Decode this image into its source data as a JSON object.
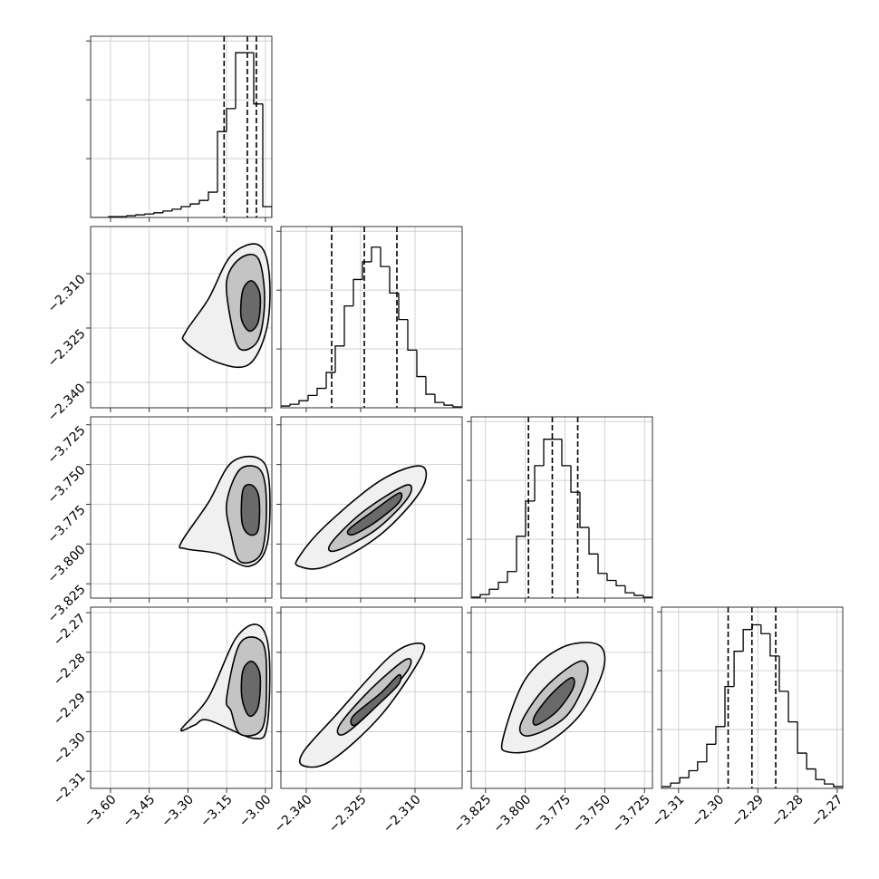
{
  "chart_data": {
    "type": "corner",
    "grid": true,
    "line_color": "#000000",
    "params": [
      {
        "xlim": [
          -3.677,
          -2.975
        ],
        "xticks": [
          {
            "value": -3.6,
            "label": "−3.60"
          },
          {
            "value": -3.45,
            "label": "−3.45"
          },
          {
            "value": -3.3,
            "label": "−3.30"
          },
          {
            "value": -3.15,
            "label": "−3.15"
          },
          {
            "value": -3.0,
            "label": "−3.00"
          }
        ],
        "hist": {
          "bins": [
            -3.677,
            -3.6419,
            -3.6068,
            -3.5717,
            -3.5366,
            -3.5015,
            -3.4664,
            -3.4313,
            -3.3962,
            -3.3611,
            -3.326,
            -3.2909,
            -3.2558,
            -3.2207,
            -3.1856,
            -3.1505,
            -3.1154,
            -3.0803,
            -3.0452,
            -3.0101,
            -2.975
          ],
          "counts": [
            0,
            0,
            15,
            15,
            30,
            45,
            60,
            80,
            110,
            140,
            185,
            230,
            290,
            430,
            1460,
            1850,
            2800,
            2800,
            1930,
            185
          ],
          "ylim": [
            0,
            3080
          ],
          "yticks": [
            1000,
            2000,
            3000
          ]
        },
        "quantiles": [
          -3.16,
          -3.07,
          -3.035
        ]
      },
      {
        "xlim": [
          -2.347,
          -2.297
        ],
        "xticks": [
          {
            "value": -2.34,
            "label": "−2.340"
          },
          {
            "value": -2.325,
            "label": "−2.325"
          },
          {
            "value": -2.31,
            "label": "−2.310"
          }
        ],
        "hist": {
          "bins": [
            -2.347,
            -2.3445,
            -2.342,
            -2.3395,
            -2.337,
            -2.3345,
            -2.332,
            -2.3295,
            -2.327,
            -2.3245,
            -2.322,
            -2.3195,
            -2.317,
            -2.3145,
            -2.312,
            -2.3095,
            -2.307,
            -2.3045,
            -2.302,
            -2.2995,
            -2.297
          ],
          "counts": [
            30,
            60,
            120,
            210,
            330,
            600,
            1050,
            1730,
            2180,
            2480,
            2730,
            2400,
            1950,
            1500,
            980,
            530,
            230,
            90,
            45,
            15
          ],
          "ylim": [
            0,
            3080
          ],
          "yticks": [
            1000,
            2000,
            3000
          ]
        },
        "quantiles": [
          -2.333,
          -2.324,
          -2.315
        ]
      },
      {
        "xlim": [
          -3.834,
          -3.72
        ],
        "xticks": [
          {
            "value": -3.825,
            "label": "−3.825"
          },
          {
            "value": -3.8,
            "label": "−3.800"
          },
          {
            "value": -3.775,
            "label": "−3.775"
          },
          {
            "value": -3.75,
            "label": "−3.750"
          },
          {
            "value": -3.725,
            "label": "−3.725"
          }
        ],
        "hist": {
          "bins": [
            -3.834,
            -3.8283,
            -3.8226,
            -3.8169,
            -3.8112,
            -3.8055,
            -3.7998,
            -3.7941,
            -3.7884,
            -3.7827,
            -3.777,
            -3.7713,
            -3.7656,
            -3.7599,
            -3.7542,
            -3.7485,
            -3.7428,
            -3.7371,
            -3.7314,
            -3.7257,
            -3.72
          ],
          "counts": [
            15,
            60,
            150,
            270,
            450,
            1050,
            1650,
            2250,
            2700,
            2700,
            2250,
            1800,
            1200,
            750,
            420,
            300,
            210,
            90,
            45,
            15
          ],
          "ylim": [
            0,
            3080
          ],
          "yticks": [
            1000,
            2000,
            3000
          ]
        },
        "quantiles": [
          -3.798,
          -3.783,
          -3.767
        ]
      },
      {
        "xlim": [
          -2.3143,
          -2.2686
        ],
        "xticks": [
          {
            "value": -2.31,
            "label": "−2.31"
          },
          {
            "value": -2.3,
            "label": "−2.30"
          },
          {
            "value": -2.29,
            "label": "−2.29"
          },
          {
            "value": -2.28,
            "label": "−2.28"
          },
          {
            "value": -2.27,
            "label": "−2.27"
          }
        ],
        "hist": {
          "bins": [
            -2.3143,
            -2.312,
            -2.3097,
            -2.3074,
            -2.3052,
            -2.3029,
            -2.3006,
            -2.2983,
            -2.296,
            -2.2937,
            -2.2914,
            -2.2892,
            -2.2869,
            -2.2846,
            -2.2823,
            -2.28,
            -2.2777,
            -2.2754,
            -2.2732,
            -2.2709,
            -2.2686
          ],
          "counts": [
            30,
            90,
            180,
            300,
            450,
            750,
            1050,
            1730,
            2330,
            2700,
            2780,
            2630,
            2250,
            1650,
            1130,
            600,
            330,
            150,
            75,
            30
          ],
          "ylim": [
            0,
            3080
          ],
          "yticks": [
            1000,
            2000,
            3000
          ]
        },
        "quantiles": [
          -2.2975,
          -2.2915,
          -2.2855
        ]
      }
    ],
    "pairs": [
      {
        "contours": [
          {
            "x": [
              -3.308,
              -3.221,
              -3.133,
              -3.028,
              -2.986,
              -2.993,
              -3.063,
              -3.186,
              -3.308
            ],
            "y": [
              -2.326,
              -2.317,
              -2.305,
              -2.302,
              -2.3095,
              -2.3245,
              -2.335,
              -2.3345,
              -2.329
            ]
          },
          {
            "x": [
              -3.15,
              -3.098,
              -3.028,
              -3.003,
              -3.028,
              -3.098,
              -3.133
            ],
            "y": [
              -2.312,
              -2.3058,
              -2.3058,
              -2.317,
              -2.3283,
              -2.3308,
              -2.3233
            ]
          },
          {
            "x": [
              -3.087,
              -3.052,
              -3.021,
              -3.028,
              -3.063,
              -3.094
            ],
            "y": [
              -2.3145,
              -2.312,
              -2.3158,
              -2.3233,
              -2.3258,
              -2.322
            ]
          }
        ]
      },
      {
        "contours": [
          {
            "x": [
              -3.326,
              -3.221,
              -3.133,
              -3.028,
              -2.986,
              -2.993,
              -3.063,
              -3.186,
              -3.308
            ],
            "y": [
              -3.799,
              -3.774,
              -3.749,
              -3.746,
              -3.76,
              -3.8,
              -3.814,
              -3.806,
              -3.803
            ]
          },
          {
            "x": [
              -3.15,
              -3.098,
              -3.017,
              -2.996,
              -3.017,
              -3.098,
              -3.133
            ],
            "y": [
              -3.774,
              -3.753,
              -3.754,
              -3.777,
              -3.806,
              -3.811,
              -3.794
            ]
          },
          {
            "x": [
              -3.087,
              -3.052,
              -3.025,
              -3.028,
              -3.063,
              -3.091
            ],
            "y": [
              -3.766,
              -3.763,
              -3.771,
              -3.791,
              -3.794,
              -3.786
            ]
          }
        ]
      },
      {
        "contours": [
          {
            "x": [
              -2.342,
              -2.3345,
              -2.3195,
              -2.3083,
              -2.3083,
              -2.3195,
              -2.3345,
              -2.342
            ],
            "y": [
              -3.808,
              -3.788,
              -3.76,
              -3.751,
              -3.766,
              -3.794,
              -3.814,
              -3.814
            ]
          },
          {
            "x": [
              -2.3333,
              -2.3245,
              -2.3125,
              -2.312,
              -2.3208,
              -2.3315
            ],
            "y": [
              -3.8,
              -3.78,
              -3.763,
              -3.771,
              -3.791,
              -3.804
            ]
          },
          {
            "x": [
              -2.3283,
              -2.322,
              -2.3145,
              -2.3145,
              -2.3208,
              -2.327
            ],
            "y": [
              -3.791,
              -3.78,
              -3.768,
              -3.774,
              -3.786,
              -3.794
            ]
          }
        ]
      },
      {
        "contours": [
          {
            "x": [
              -3.326,
              -3.221,
              -3.115,
              -3.028,
              -2.986,
              -2.993,
              -3.045,
              -3.221,
              -3.273
            ],
            "y": [
              -2.2994,
              -2.2914,
              -2.2765,
              -2.2731,
              -2.28,
              -2.2983,
              -2.3017,
              -2.2971,
              -2.2983
            ]
          },
          {
            "x": [
              -3.15,
              -3.098,
              -3.01,
              -2.996,
              -3.014,
              -3.098,
              -3.133
            ],
            "y": [
              -2.2914,
              -2.2777,
              -2.2777,
              -2.2891,
              -2.2994,
              -2.3006,
              -2.2948
            ]
          },
          {
            "x": [
              -3.087,
              -3.052,
              -3.021,
              -3.028,
              -3.063,
              -3.091
            ],
            "y": [
              -2.2846,
              -2.2823,
              -2.2857,
              -2.2937,
              -2.296,
              -2.2914
            ]
          }
        ]
      },
      {
        "contours": [
          {
            "x": [
              -2.3408,
              -2.332,
              -2.317,
              -2.309,
              -2.3083,
              -2.3195,
              -2.3333,
              -2.3408
            ],
            "y": [
              -2.3051,
              -2.296,
              -2.2811,
              -2.2777,
              -2.2811,
              -2.296,
              -2.3074,
              -2.3086
            ]
          },
          {
            "x": [
              -2.3308,
              -2.322,
              -2.3125,
              -2.312,
              -2.3208,
              -2.3295
            ],
            "y": [
              -2.2983,
              -2.2891,
              -2.2818,
              -2.2845,
              -2.2937,
              -2.3006
            ]
          },
          {
            "x": [
              -2.327,
              -2.3195,
              -2.3145,
              -2.3145,
              -2.3195,
              -2.3265
            ],
            "y": [
              -2.296,
              -2.2903,
              -2.2857,
              -2.288,
              -2.2926,
              -2.2983
            ]
          }
        ]
      },
      {
        "contours": [
          {
            "x": [
              -3.814,
              -3.8,
              -3.777,
              -3.754,
              -3.751,
              -3.766,
              -3.791,
              -3.811
            ],
            "y": [
              -2.3017,
              -2.2868,
              -2.2788,
              -2.2781,
              -2.2845,
              -2.296,
              -2.304,
              -2.3051
            ]
          },
          {
            "x": [
              -3.803,
              -3.788,
              -3.766,
              -3.761,
              -3.774,
              -3.797
            ],
            "y": [
              -2.2983,
              -2.2891,
              -2.2823,
              -2.2857,
              -2.296,
              -2.301
            ]
          },
          {
            "x": [
              -3.794,
              -3.783,
              -3.771,
              -3.77,
              -3.78,
              -3.793
            ],
            "y": [
              -2.296,
              -2.2903,
              -2.2864,
              -2.2891,
              -2.2948,
              -2.2983
            ]
          }
        ]
      }
    ]
  }
}
